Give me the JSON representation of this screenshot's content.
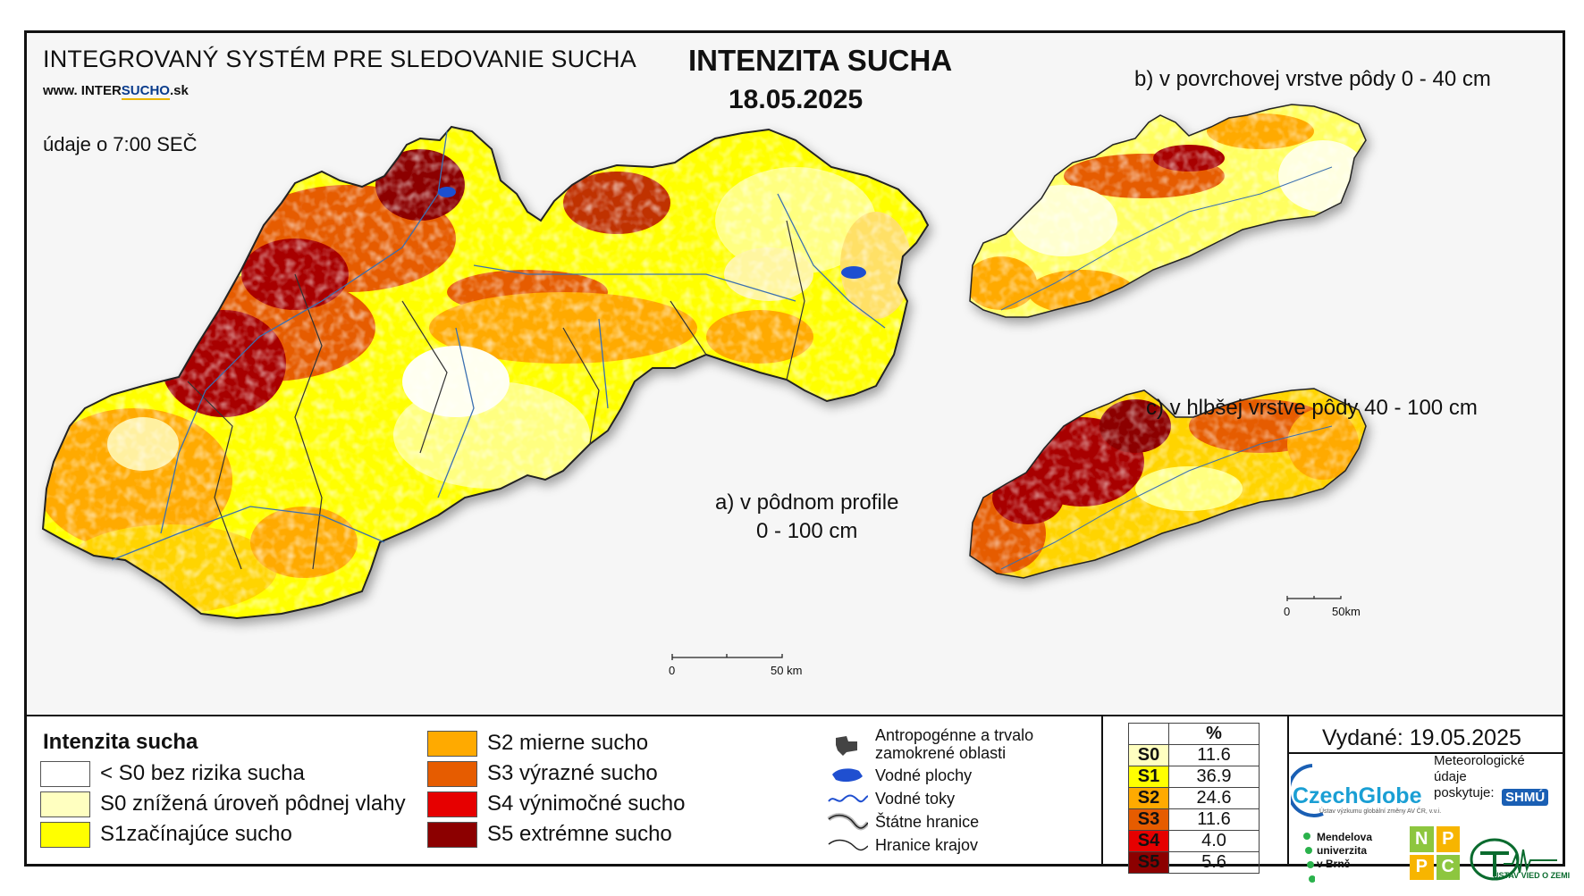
{
  "header": {
    "system_title": "INTEGROVANÝ SYSTÉM PRE SLEDOVANIE SUCHA",
    "url_prefix": "www. INTER",
    "url_brand": "SUCHO",
    "url_suffix": ".sk",
    "time_note": "údaje o 7:00 SEČ",
    "main_title": "INTENZITA SUCHA",
    "main_date": "18.05.2025"
  },
  "maps": {
    "a_label_line1": "a) v pôdnom profile",
    "a_label_line2": "0 - 100 cm",
    "b_label": "b) v povrchovej vrstve pôdy 0 - 40 cm",
    "c_label": "c) v hlbšej vrstve pôdy 40 - 100 cm",
    "scale_main_start": "0",
    "scale_main_end": "50 km",
    "scale_small_start": "0",
    "scale_small_end": "50km"
  },
  "legend": {
    "title": "Intenzita sucha",
    "items": [
      {
        "label": "< S0 bez rizika sucha",
        "color": "#ffffff"
      },
      {
        "label": "S0 znížená úroveň pôdnej vlahy",
        "color": "#ffffc0"
      },
      {
        "label": "S1začínajúce sucho",
        "color": "#ffff00"
      },
      {
        "label": "S2 mierne sucho",
        "color": "#ffaa00"
      },
      {
        "label": "S3 výrazné sucho",
        "color": "#e65c00"
      },
      {
        "label": "S4 výnimočné sucho",
        "color": "#e60000"
      },
      {
        "label": "S5 extrémne sucho",
        "color": "#8c0000"
      }
    ],
    "symbols": [
      {
        "label_line1": "Antropogénne a trvalo",
        "label_line2": "zamokrené oblasti",
        "icon": "urban-area-icon"
      },
      {
        "label_line1": "Vodné plochy",
        "icon": "water-body-icon"
      },
      {
        "label_line1": "Vodné toky",
        "icon": "river-icon"
      },
      {
        "label_line1": "Štátne hranice",
        "icon": "state-border-icon"
      },
      {
        "label_line1": "Hranice krajov",
        "icon": "region-border-icon"
      }
    ]
  },
  "stats": {
    "header": "%",
    "rows": [
      {
        "class": "S0",
        "value": "11.6",
        "color": "#ffffc0"
      },
      {
        "class": "S1",
        "value": "36.9",
        "color": "#ffff00"
      },
      {
        "class": "S2",
        "value": "24.6",
        "color": "#ffaa00"
      },
      {
        "class": "S3",
        "value": "11.6",
        "color": "#e65c00"
      },
      {
        "class": "S4",
        "value": "4.0",
        "color": "#e60000"
      },
      {
        "class": "S5",
        "value": "5.6",
        "color": "#8c0000"
      }
    ]
  },
  "footer": {
    "issued": "Vydané: 19.05.2025",
    "czechglobe": "CzechGlobe",
    "czechglobe_sub": "Ústav výzkumu globální změny AV ČR, v.v.i.",
    "met_label_line1": "Meteorologické",
    "met_label_line2": "údaje",
    "met_label_line3": "poskytuje:",
    "shmu": "SHMÚ",
    "mendel_line1": "Mendelova",
    "mendel_line2": "univerzita",
    "mendel_line3": "v Brně",
    "nppc": [
      "N",
      "P",
      "P",
      "C"
    ],
    "uvz": "ÚSTAV VIED O ZEMI"
  }
}
